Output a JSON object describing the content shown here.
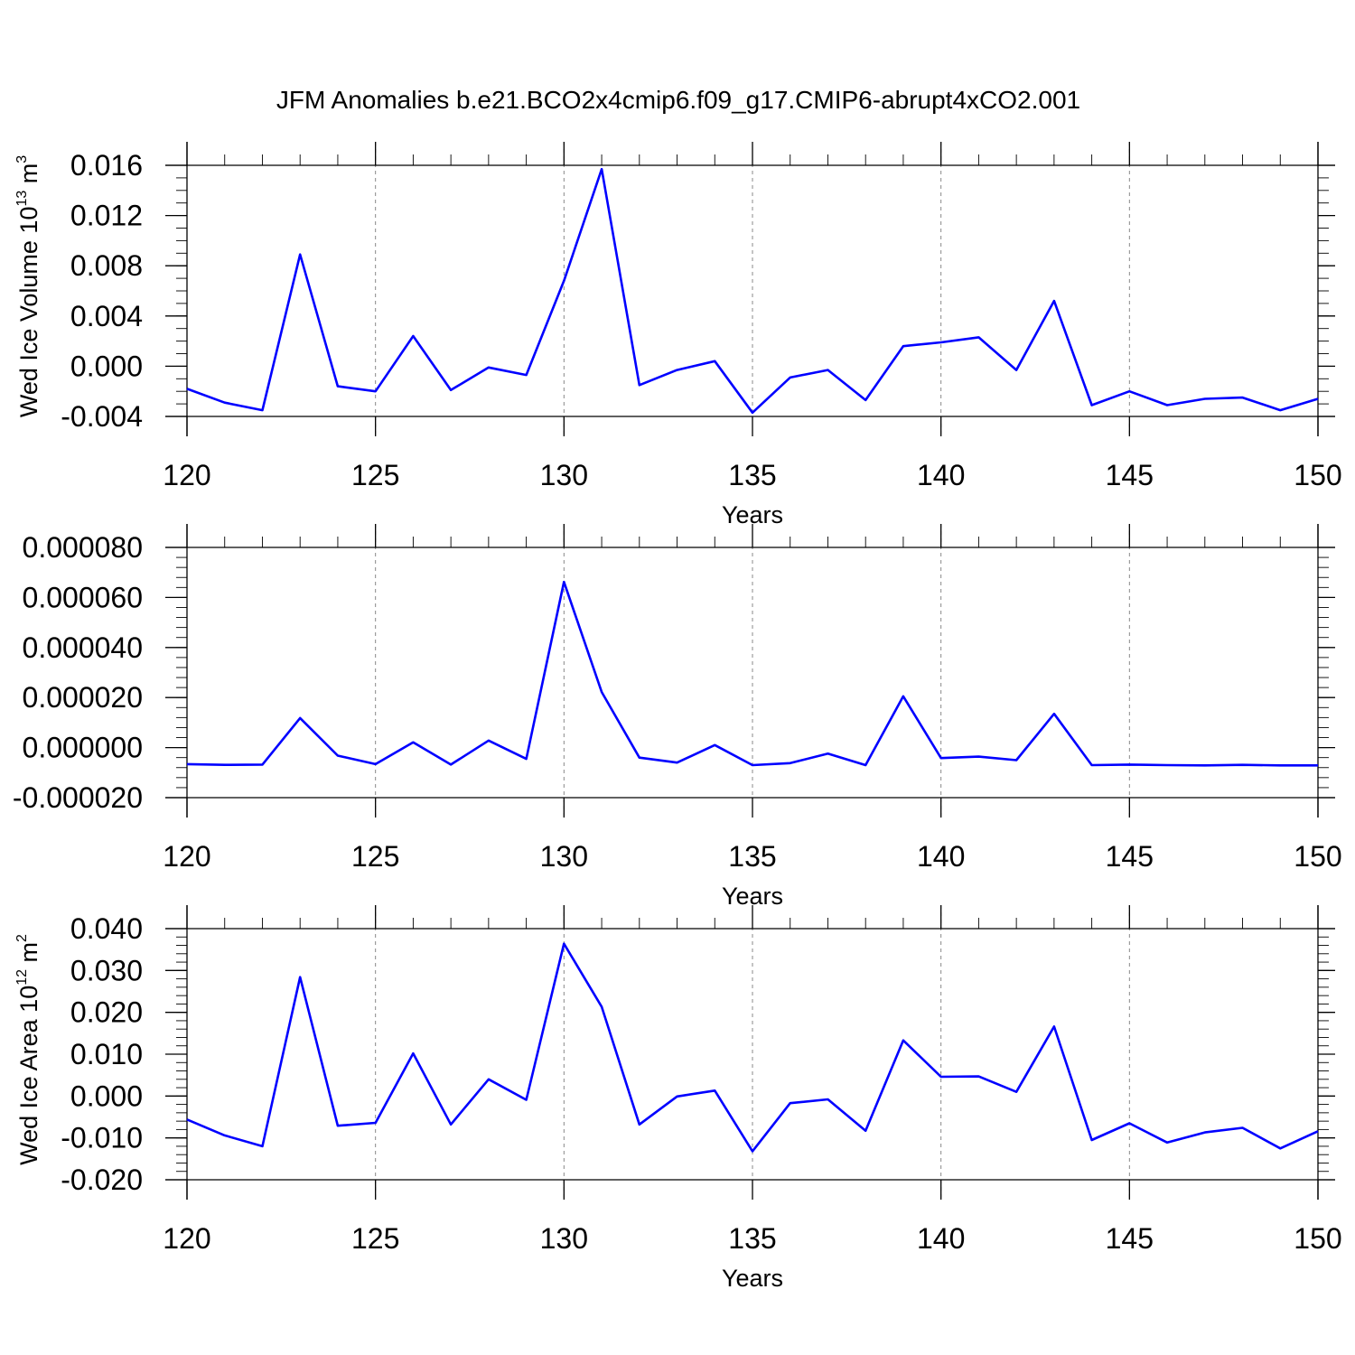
{
  "chart_data": {
    "type": "line",
    "title": "JFM Anomalies b.e21.BCO2x4cmip6.f09_g17.CMIP6-abrupt4xCO2.001",
    "line_color": "#0000ff",
    "grid": "vertical dashed lines at major x ticks",
    "panels": [
      {
        "ylabel": "Wed Ice Volume",
        "ylabel_unit": "10",
        "ylabel_unit_exp": "13",
        "ylabel_unit_tail": "m",
        "ylabel_unit_tail_exp": "3",
        "xlabel": "Years",
        "xlim": [
          120,
          150
        ],
        "ylim": [
          -0.004,
          0.016
        ],
        "xticks": [
          120,
          125,
          130,
          135,
          140,
          145,
          150
        ],
        "xtick_labels": [
          "120",
          "125",
          "130",
          "135",
          "140",
          "145",
          "150"
        ],
        "yticks": [
          -0.004,
          0,
          0.004,
          0.008,
          0.012,
          0.016
        ],
        "ytick_labels": [
          "-0.004",
          "0.000",
          "0.004",
          "0.008",
          "0.012",
          "0.016"
        ],
        "y_minor_step": 0.001,
        "x": [
          120,
          121,
          122,
          123,
          124,
          125,
          126,
          127,
          128,
          129,
          130,
          131,
          132,
          133,
          134,
          135,
          136,
          137,
          138,
          139,
          140,
          141,
          142,
          143,
          144,
          145,
          146,
          147,
          148,
          149,
          150
        ],
        "y": [
          -0.0018,
          -0.0029,
          -0.0035,
          0.0089,
          -0.0016,
          -0.002,
          0.0024,
          -0.0019,
          -0.0001,
          -0.0007,
          0.0068,
          0.0157,
          -0.0015,
          -0.0003,
          0.0004,
          -0.0037,
          -0.0009,
          -0.0003,
          -0.0027,
          0.0016,
          0.0019,
          0.0023,
          -0.0003,
          0.0052,
          -0.0031,
          -0.002,
          -0.0031,
          -0.0026,
          -0.0025,
          -0.0035,
          -0.0026
        ]
      },
      {
        "ylabel": "",
        "xlabel": "Years",
        "xlim": [
          120,
          150
        ],
        "ylim": [
          -2e-05,
          8e-05
        ],
        "xticks": [
          120,
          125,
          130,
          135,
          140,
          145,
          150
        ],
        "xtick_labels": [
          "120",
          "125",
          "130",
          "135",
          "140",
          "145",
          "150"
        ],
        "yticks": [
          -2e-05,
          0,
          2e-05,
          4e-05,
          6e-05,
          8e-05
        ],
        "ytick_labels": [
          "-0.000020",
          "0.000000",
          "0.000020",
          "0.000040",
          "0.000060",
          "0.000080"
        ],
        "y_minor_step": 4e-06,
        "x": [
          120,
          121,
          122,
          123,
          124,
          125,
          126,
          127,
          128,
          129,
          130,
          131,
          132,
          133,
          134,
          135,
          136,
          137,
          138,
          139,
          140,
          141,
          142,
          143,
          144,
          145,
          146,
          147,
          148,
          149,
          150
        ],
        "y": [
          -6.6e-06,
          -6.9e-06,
          -6.8e-06,
          1.18e-05,
          -3.2e-06,
          -6.6e-06,
          2.1e-06,
          -6.8e-06,
          2.8e-06,
          -4.5e-06,
          6.62e-05,
          2.22e-05,
          -4e-06,
          -6e-06,
          1e-06,
          -7e-06,
          -6.2e-06,
          -2.4e-06,
          -7e-06,
          2.05e-05,
          -4.2e-06,
          -3.6e-06,
          -5e-06,
          1.35e-05,
          -7e-06,
          -6.8e-06,
          -7e-06,
          -7.1e-06,
          -6.9e-06,
          -7.1e-06,
          -7.1e-06
        ]
      },
      {
        "ylabel": "Wed Ice Area",
        "ylabel_unit": "10",
        "ylabel_unit_exp": "12",
        "ylabel_unit_tail": "m",
        "ylabel_unit_tail_exp": "2",
        "xlabel": "Years",
        "xlim": [
          120,
          150
        ],
        "ylim": [
          -0.02,
          0.04
        ],
        "xticks": [
          120,
          125,
          130,
          135,
          140,
          145,
          150
        ],
        "xtick_labels": [
          "120",
          "125",
          "130",
          "135",
          "140",
          "145",
          "150"
        ],
        "yticks": [
          -0.02,
          -0.01,
          0,
          0.01,
          0.02,
          0.03,
          0.04
        ],
        "ytick_labels": [
          "-0.020",
          "-0.010",
          "0.000",
          "0.010",
          "0.020",
          "0.030",
          "0.040"
        ],
        "y_minor_step": 0.002,
        "x": [
          120,
          121,
          122,
          123,
          124,
          125,
          126,
          127,
          128,
          129,
          130,
          131,
          132,
          133,
          134,
          135,
          136,
          137,
          138,
          139,
          140,
          141,
          142,
          143,
          144,
          145,
          146,
          147,
          148,
          149,
          150
        ],
        "y": [
          -0.0056,
          -0.0094,
          -0.012,
          0.0284,
          -0.0071,
          -0.0064,
          0.0102,
          -0.0068,
          0.004,
          -0.0009,
          0.0364,
          0.0213,
          -0.0068,
          -0.0001,
          0.0013,
          -0.0132,
          -0.0017,
          -0.0008,
          -0.0083,
          0.0133,
          0.0046,
          0.0047,
          0.001,
          0.0166,
          -0.0105,
          -0.0065,
          -0.0111,
          -0.0087,
          -0.0076,
          -0.0125,
          -0.0084
        ]
      }
    ]
  }
}
